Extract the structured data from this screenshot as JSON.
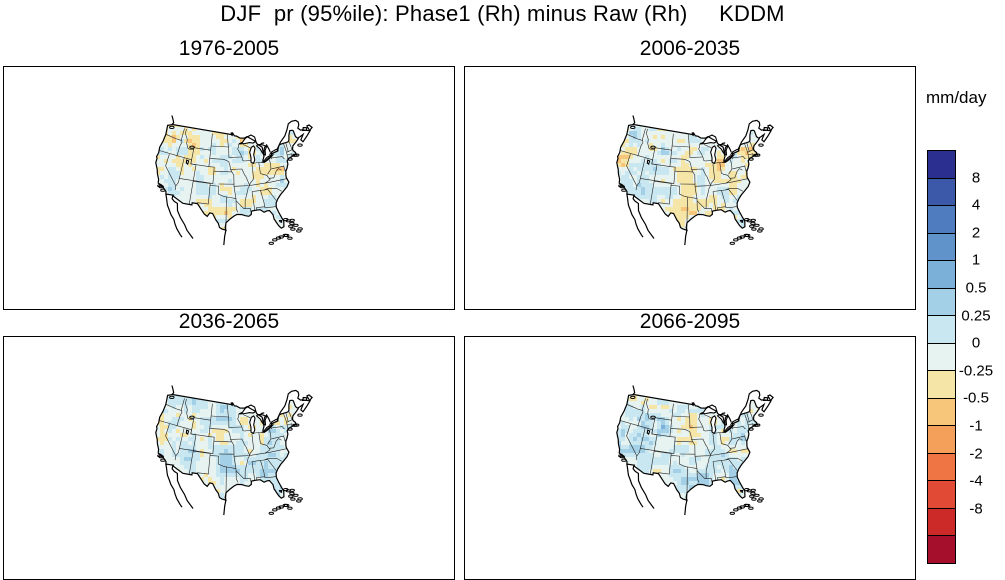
{
  "title": "DJF  pr (95%ile): Phase1 (Rh) minus Raw (Rh)     KDDM",
  "panels": [
    {
      "label": "1976-2005",
      "seed": 11,
      "bias": 0.05,
      "west": 0.2
    },
    {
      "label": "2006-2035",
      "seed": 23,
      "bias": -0.05,
      "west": 0.8
    },
    {
      "label": "2036-2065",
      "seed": 37,
      "bias": -0.25,
      "west": 1.3
    },
    {
      "label": "2066-2095",
      "seed": 53,
      "bias": -0.35,
      "west": 2.2
    }
  ],
  "colorbar": {
    "units": "mm/day",
    "labels": [
      "8",
      "4",
      "2",
      "1",
      "0.5",
      "0.25",
      "0",
      "-0.25",
      "-0.5",
      "-1",
      "-2",
      "-4",
      "-8"
    ],
    "colors": [
      "#2b2f8f",
      "#3c58a8",
      "#4f7cbf",
      "#5f93ca",
      "#7bb1d8",
      "#a3d0e6",
      "#c9e7f0",
      "#e7f3f1",
      "#f5e5a6",
      "#f8c67b",
      "#f5a05a",
      "#ef7544",
      "#e14a34",
      "#cc2929",
      "#a50f2c"
    ]
  }
}
